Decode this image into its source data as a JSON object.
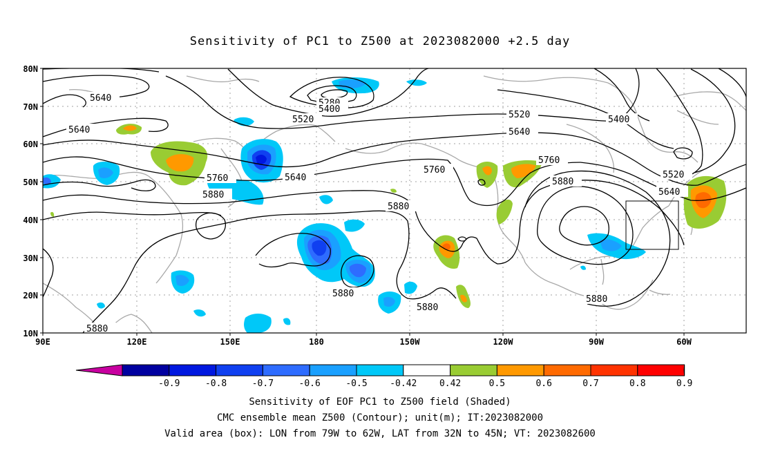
{
  "title": "Sensitivity of PC1 to Z500 at 2023082000 +2.5 day",
  "map": {
    "lat_ticks": [
      "80N",
      "70N",
      "60N",
      "50N",
      "40N",
      "30N",
      "20N",
      "10N"
    ],
    "lon_ticks": [
      "90E",
      "120E",
      "150E",
      "180",
      "150W",
      "120W",
      "90W",
      "60W"
    ],
    "contour_labels": [
      "5640",
      "5640",
      "5280",
      "5400",
      "5520",
      "5520",
      "5640",
      "5400",
      "5760",
      "5880",
      "5640",
      "5760",
      "5880",
      "5760",
      "5520",
      "5640",
      "5880",
      "5880",
      "5880",
      "5880",
      "5880"
    ],
    "valid_box": {
      "lon_west": "79W",
      "lon_east": "62W",
      "lat_south": "32N",
      "lat_north": "45N"
    }
  },
  "colorbar": {
    "labels": [
      "-0.9",
      "-0.8",
      "-0.7",
      "-0.6",
      "-0.5",
      "-0.42",
      "0.42",
      "0.5",
      "0.6",
      "0.7",
      "0.8",
      "0.9"
    ],
    "colors": [
      "#0000a0",
      "#0018e0",
      "#1040f0",
      "#2e6cff",
      "#1aa0ff",
      "#00c8f8",
      "#ffffff",
      "#99cc33",
      "#ff9900",
      "#ff6a00",
      "#ff3300",
      "#ff0000"
    ],
    "end_low": "#c800a0",
    "end_high": "#ff99cc"
  },
  "captions": [
    "Sensitivity of EOF PC1 to Z500 field (Shaded)",
    "CMC ensemble mean Z500 (Contour); unit(m); IT:2023082000",
    "Valid area (box): LON from 79W to 62W, LAT from 32N to 45N; VT: 2023082600"
  ]
}
